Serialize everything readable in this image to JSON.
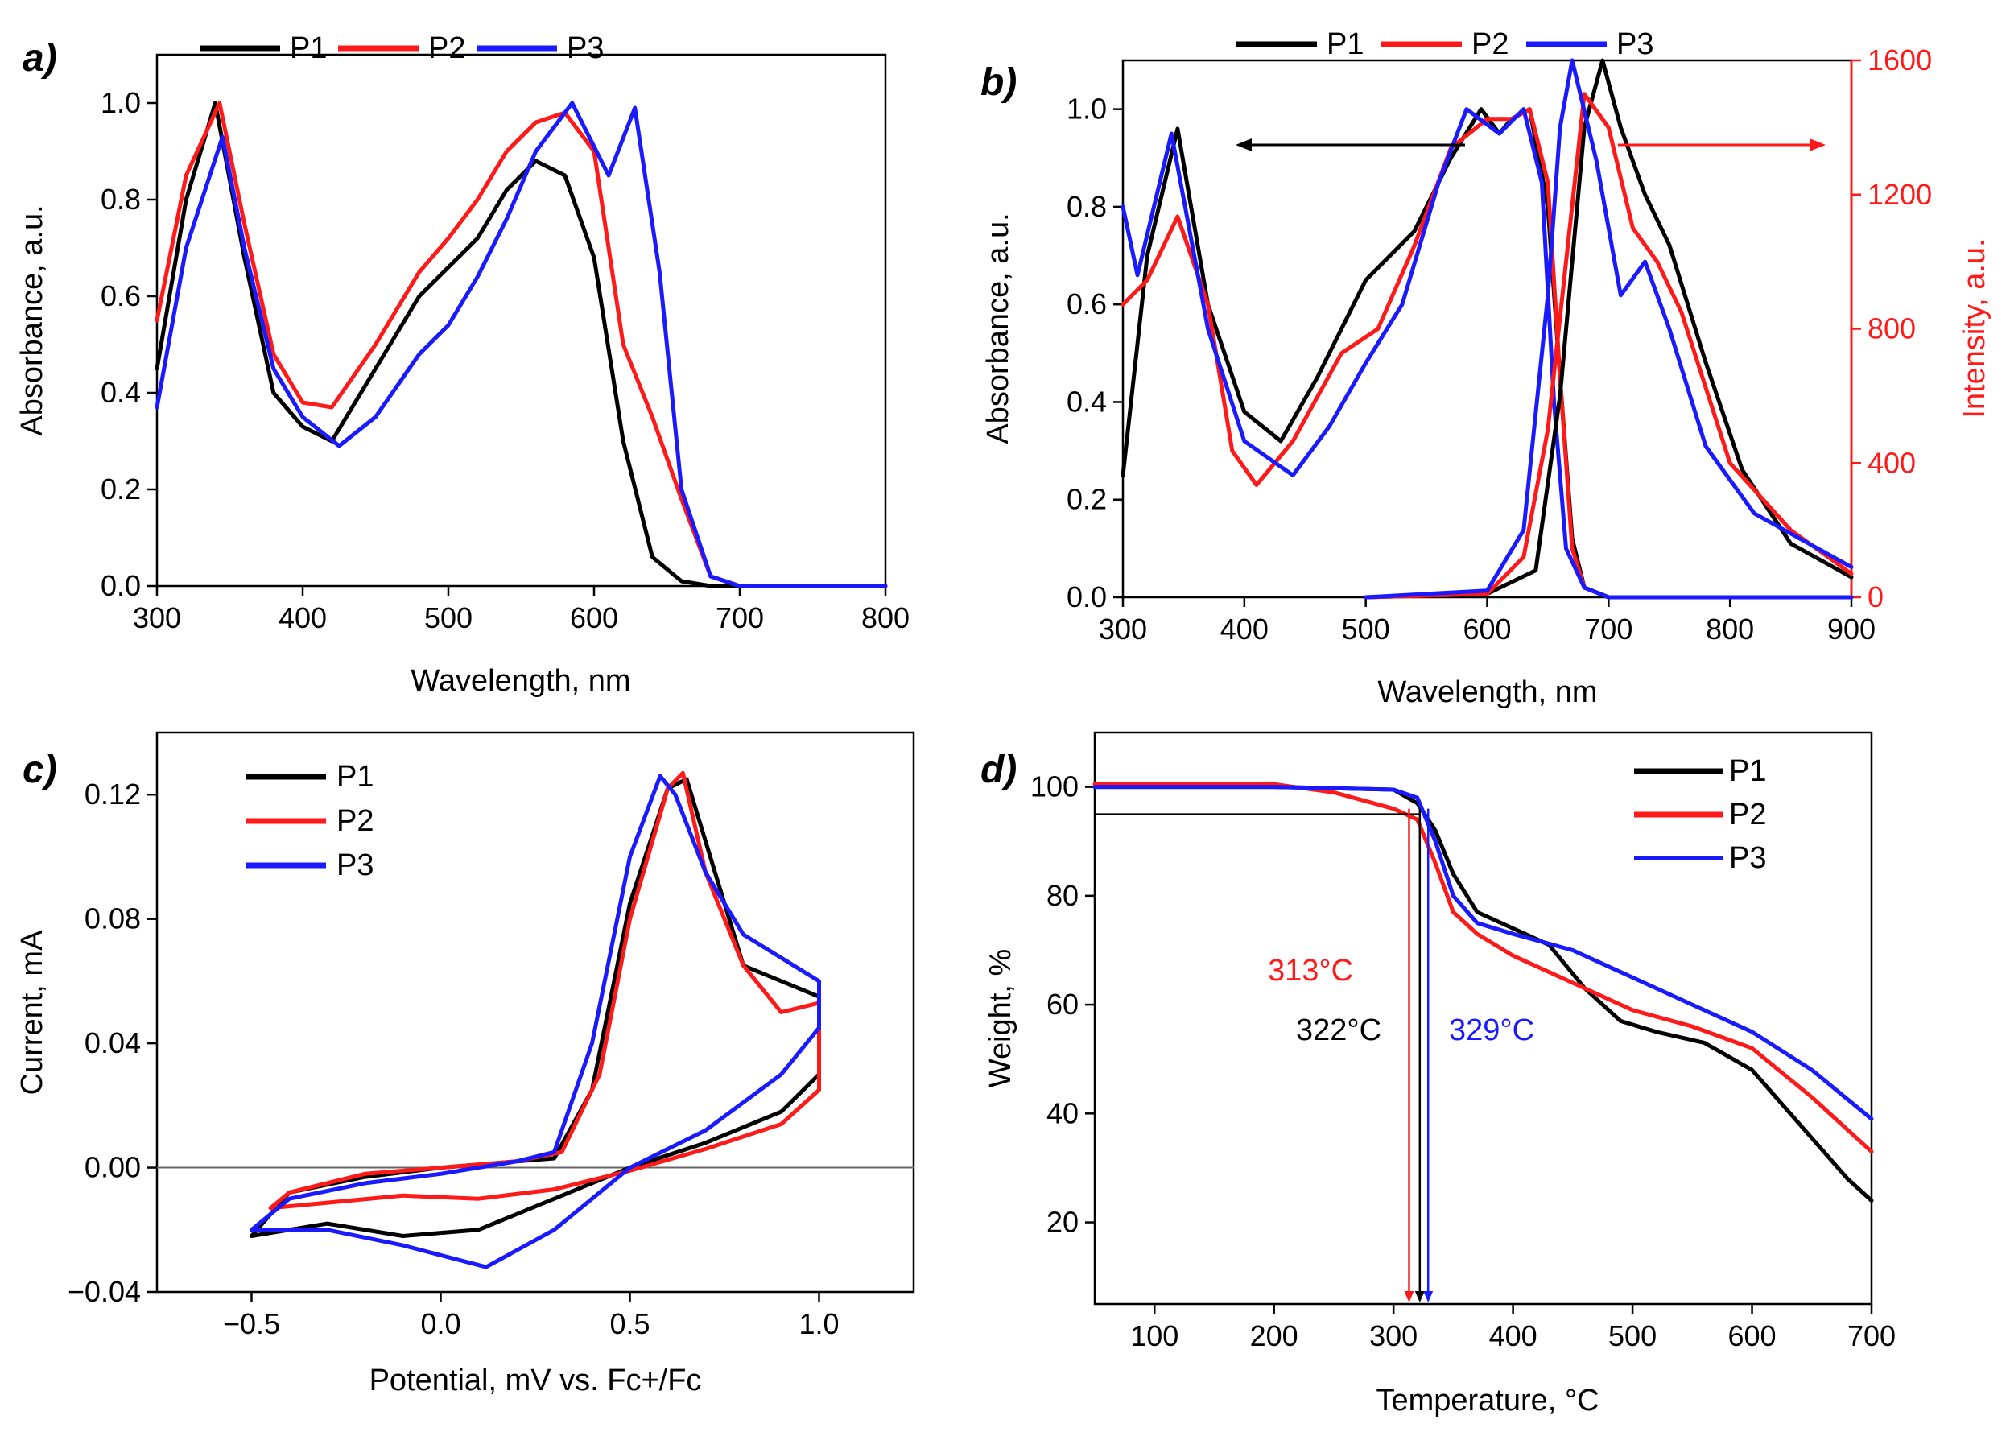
{
  "figure": {
    "colors": {
      "P1": "#000000",
      "P2": "#ff1a1a",
      "P3": "#1a1aff"
    },
    "panels": [
      {
        "id": "a",
        "label": "a)",
        "legend": [
          "P1",
          "P2",
          "P3"
        ]
      },
      {
        "id": "b",
        "label": "b)",
        "legend": [
          "P1",
          "P2",
          "P3"
        ]
      },
      {
        "id": "c",
        "label": "c)",
        "legend": [
          "P1",
          "P2",
          "P3"
        ]
      },
      {
        "id": "d",
        "label": "d)",
        "legend": [
          "P1",
          "P2",
          "P3"
        ],
        "annotations": [
          {
            "text": "313°C",
            "color": "#ff1a1a"
          },
          {
            "text": "322°C",
            "color": "#000000"
          },
          {
            "text": "329°C",
            "color": "#1a1aff"
          }
        ]
      }
    ]
  },
  "chart_data": [
    {
      "panel": "a",
      "type": "line",
      "title": "",
      "xlabel": "Wavelength, nm",
      "ylabel": "Absorbance, a.u.",
      "xlim": [
        300,
        800
      ],
      "ylim": [
        0.0,
        1.1
      ],
      "xticks": [
        300,
        400,
        500,
        600,
        700,
        800
      ],
      "yticks": [
        0.0,
        0.2,
        0.4,
        0.6,
        0.8,
        1.0
      ],
      "xtick_labels": [
        "300",
        "400",
        "500",
        "600",
        "700",
        "800"
      ],
      "ytick_labels": [
        "0.0",
        "0.2",
        "0.4",
        "0.6",
        "0.8",
        "1.0"
      ],
      "legend_position": "top",
      "series": [
        {
          "name": "P1",
          "color": "#000000",
          "x": [
            300,
            320,
            340,
            360,
            380,
            400,
            420,
            450,
            480,
            500,
            520,
            540,
            560,
            580,
            600,
            620,
            640,
            660,
            680,
            700,
            800
          ],
          "y": [
            0.45,
            0.8,
            1.0,
            0.68,
            0.4,
            0.33,
            0.3,
            0.45,
            0.6,
            0.66,
            0.72,
            0.82,
            0.88,
            0.85,
            0.68,
            0.3,
            0.06,
            0.01,
            0.0,
            0.0,
            0.0
          ]
        },
        {
          "name": "P2",
          "color": "#ff1a1a",
          "x": [
            300,
            320,
            343,
            360,
            380,
            400,
            420,
            450,
            480,
            500,
            520,
            540,
            560,
            580,
            600,
            620,
            640,
            660,
            680,
            700,
            800
          ],
          "y": [
            0.55,
            0.85,
            1.0,
            0.75,
            0.48,
            0.38,
            0.37,
            0.5,
            0.65,
            0.72,
            0.8,
            0.9,
            0.96,
            0.98,
            0.9,
            0.5,
            0.35,
            0.18,
            0.02,
            0.0,
            0.0
          ]
        },
        {
          "name": "P3",
          "color": "#1a1aff",
          "x": [
            300,
            320,
            345,
            360,
            380,
            400,
            425,
            450,
            480,
            500,
            520,
            540,
            560,
            585,
            610,
            628,
            645,
            660,
            680,
            700,
            800
          ],
          "y": [
            0.37,
            0.7,
            0.93,
            0.7,
            0.45,
            0.35,
            0.29,
            0.35,
            0.48,
            0.54,
            0.64,
            0.76,
            0.9,
            1.0,
            0.85,
            0.99,
            0.65,
            0.2,
            0.02,
            0.0,
            0.0
          ]
        }
      ]
    },
    {
      "panel": "b",
      "type": "line",
      "title": "",
      "xlabel": "Wavelength, nm",
      "ylabel": "Absorbance, a.u.",
      "y2label": "Intensity, a.u.",
      "xlim": [
        300,
        900
      ],
      "ylim": [
        0.0,
        1.1
      ],
      "y2lim": [
        0,
        1600
      ],
      "xticks": [
        300,
        400,
        500,
        600,
        700,
        800,
        900
      ],
      "yticks": [
        0.0,
        0.2,
        0.4,
        0.6,
        0.8,
        1.0
      ],
      "y2ticks": [
        0,
        400,
        800,
        1200,
        1600
      ],
      "xtick_labels": [
        "300",
        "400",
        "500",
        "600",
        "700",
        "800",
        "900"
      ],
      "ytick_labels": [
        "0.0",
        "0.2",
        "0.4",
        "0.6",
        "0.8",
        "1.0"
      ],
      "y2tick_labels": [
        "0",
        "400",
        "800",
        "1200",
        "1600"
      ],
      "legend_position": "top",
      "series": [
        {
          "name": "P1 absorbance",
          "color": "#000000",
          "axis": "left",
          "x": [
            300,
            320,
            345,
            370,
            400,
            430,
            460,
            500,
            540,
            570,
            595,
            610,
            620,
            635,
            650,
            660,
            670,
            680,
            700,
            900
          ],
          "y": [
            0.25,
            0.7,
            0.96,
            0.6,
            0.38,
            0.32,
            0.45,
            0.65,
            0.75,
            0.9,
            1.0,
            0.95,
            0.98,
            1.0,
            0.8,
            0.45,
            0.12,
            0.02,
            0.0,
            0.0
          ]
        },
        {
          "name": "P2 absorbance",
          "color": "#ff1a1a",
          "axis": "left",
          "x": [
            300,
            320,
            345,
            370,
            390,
            410,
            440,
            480,
            510,
            540,
            570,
            600,
            620,
            635,
            650,
            660,
            670,
            680,
            700,
            900
          ],
          "y": [
            0.6,
            0.65,
            0.78,
            0.6,
            0.3,
            0.23,
            0.32,
            0.5,
            0.55,
            0.72,
            0.92,
            0.98,
            0.98,
            1.0,
            0.85,
            0.45,
            0.1,
            0.02,
            0.0,
            0.0
          ]
        },
        {
          "name": "P3 absorbance",
          "color": "#1a1aff",
          "axis": "left",
          "x": [
            300,
            312,
            340,
            370,
            400,
            440,
            470,
            500,
            530,
            560,
            583,
            610,
            630,
            645,
            655,
            665,
            680,
            700,
            900
          ],
          "y": [
            0.8,
            0.66,
            0.95,
            0.55,
            0.32,
            0.25,
            0.35,
            0.48,
            0.6,
            0.85,
            1.0,
            0.95,
            1.0,
            0.85,
            0.4,
            0.1,
            0.02,
            0.0,
            0.0
          ]
        },
        {
          "name": "P1 emission",
          "color": "#000000",
          "axis": "right",
          "x": [
            500,
            600,
            640,
            660,
            680,
            695,
            710,
            730,
            750,
            780,
            810,
            850,
            900
          ],
          "y": [
            0,
            10,
            80,
            600,
            1400,
            1600,
            1400,
            1200,
            1050,
            700,
            380,
            160,
            60
          ]
        },
        {
          "name": "P2 emission",
          "color": "#ff1a1a",
          "axis": "right",
          "x": [
            500,
            600,
            630,
            650,
            665,
            680,
            700,
            720,
            740,
            760,
            800,
            850,
            900
          ],
          "y": [
            0,
            10,
            120,
            500,
            1000,
            1500,
            1400,
            1100,
            1000,
            850,
            400,
            200,
            70
          ]
        },
        {
          "name": "P3 emission",
          "color": "#1a1aff",
          "axis": "right",
          "x": [
            500,
            600,
            630,
            650,
            660,
            670,
            690,
            710,
            730,
            750,
            780,
            820,
            900
          ],
          "y": [
            0,
            20,
            200,
            900,
            1400,
            1600,
            1300,
            900,
            1000,
            800,
            450,
            250,
            90
          ]
        }
      ]
    },
    {
      "panel": "c",
      "type": "line",
      "title": "",
      "xlabel": "Potential, mV vs. Fc+/Fc",
      "ylabel": "Current, mA",
      "xlim": [
        -0.75,
        1.25
      ],
      "ylim": [
        -0.04,
        0.14
      ],
      "xticks": [
        -0.5,
        0.0,
        0.5,
        1.0
      ],
      "yticks": [
        -0.04,
        0.0,
        0.04,
        0.08,
        0.12
      ],
      "xtick_labels": [
        "−0.5",
        "0.0",
        "0.5",
        "1.0"
      ],
      "ytick_labels": [
        "−0.04",
        "0.00",
        "0.04",
        "0.08",
        "0.12"
      ],
      "legend_position": "top-left",
      "series": [
        {
          "name": "P1",
          "color": "#000000",
          "x": [
            -0.5,
            -0.4,
            -0.2,
            0.0,
            0.2,
            0.3,
            0.4,
            0.5,
            0.6,
            0.65,
            0.7,
            0.8,
            1.0,
            1.0,
            0.9,
            0.7,
            0.5,
            0.3,
            0.1,
            -0.1,
            -0.3,
            -0.5
          ],
          "y": [
            -0.022,
            -0.008,
            -0.003,
            0.0,
            0.002,
            0.003,
            0.025,
            0.085,
            0.122,
            0.125,
            0.105,
            0.065,
            0.055,
            0.03,
            0.018,
            0.008,
            0.0,
            -0.01,
            -0.02,
            -0.022,
            -0.018,
            -0.022
          ]
        },
        {
          "name": "P2",
          "color": "#ff1a1a",
          "x": [
            -0.45,
            -0.4,
            -0.2,
            0.0,
            0.2,
            0.32,
            0.42,
            0.5,
            0.6,
            0.64,
            0.7,
            0.8,
            0.9,
            1.0,
            1.0,
            0.9,
            0.7,
            0.5,
            0.3,
            0.1,
            -0.1,
            -0.45
          ],
          "y": [
            -0.013,
            -0.008,
            -0.002,
            0.0,
            0.002,
            0.005,
            0.03,
            0.08,
            0.122,
            0.127,
            0.095,
            0.065,
            0.05,
            0.053,
            0.025,
            0.014,
            0.006,
            -0.001,
            -0.007,
            -0.01,
            -0.009,
            -0.013
          ]
        },
        {
          "name": "P3",
          "color": "#1a1aff",
          "x": [
            -0.5,
            -0.4,
            -0.2,
            0.0,
            0.2,
            0.3,
            0.4,
            0.5,
            0.58,
            0.62,
            0.7,
            0.8,
            1.0,
            1.0,
            0.9,
            0.7,
            0.5,
            0.3,
            0.12,
            -0.1,
            -0.3,
            -0.5
          ],
          "y": [
            -0.02,
            -0.01,
            -0.005,
            -0.002,
            0.002,
            0.005,
            0.04,
            0.1,
            0.126,
            0.12,
            0.095,
            0.075,
            0.06,
            0.045,
            0.03,
            0.012,
            0.0,
            -0.02,
            -0.032,
            -0.025,
            -0.02,
            -0.02
          ]
        }
      ]
    },
    {
      "panel": "d",
      "type": "line",
      "title": "",
      "xlabel": "Temperature, °C",
      "ylabel": "Weight, %",
      "xlim": [
        50,
        700
      ],
      "ylim": [
        5,
        110
      ],
      "xticks": [
        100,
        200,
        300,
        400,
        500,
        600,
        700
      ],
      "yticks": [
        20,
        40,
        60,
        80,
        100
      ],
      "xtick_labels": [
        "100",
        "200",
        "300",
        "400",
        "500",
        "600",
        "700"
      ],
      "ytick_labels": [
        "20",
        "40",
        "60",
        "80",
        "100"
      ],
      "legend_position": "top-right",
      "onset_temperatures": [
        313,
        322,
        329
      ],
      "series": [
        {
          "name": "P1",
          "color": "#000000",
          "x": [
            50,
            200,
            300,
            320,
            335,
            350,
            370,
            400,
            430,
            460,
            490,
            520,
            560,
            600,
            640,
            680,
            700
          ],
          "y": [
            100,
            100,
            99.5,
            97,
            92,
            84,
            77,
            74,
            71,
            63,
            57,
            55,
            53,
            48,
            38,
            28,
            24
          ]
        },
        {
          "name": "P2",
          "color": "#ff1a1a",
          "x": [
            50,
            200,
            250,
            300,
            320,
            335,
            350,
            370,
            400,
            450,
            500,
            550,
            600,
            650,
            700
          ],
          "y": [
            100.5,
            100.5,
            99,
            96,
            94,
            86,
            77,
            73,
            69,
            64,
            59,
            56,
            52,
            43,
            33
          ]
        },
        {
          "name": "P3",
          "color": "#1a1aff",
          "x": [
            50,
            200,
            300,
            320,
            335,
            350,
            370,
            400,
            450,
            500,
            550,
            600,
            650,
            700
          ],
          "y": [
            100,
            100,
            99.5,
            98,
            90,
            80,
            75,
            73,
            70,
            65,
            60,
            55,
            48,
            39
          ]
        }
      ]
    }
  ]
}
